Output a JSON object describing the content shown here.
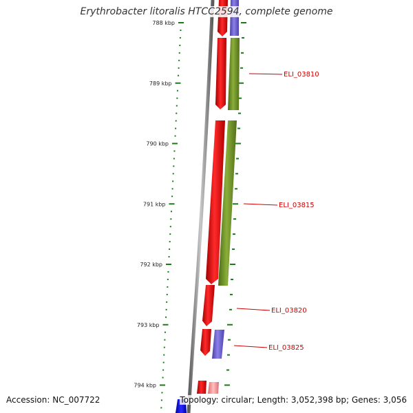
{
  "title": "Erythrobacter litoralis HTCC2594, complete genome",
  "accession": "Accession: NC_007722",
  "summary": "Topology: circular; Length: 3,052,398 bp; Genes: 3,056",
  "colors": {
    "forward_gene": "#ff0000",
    "reverse_gene_olive": "#6b8e23",
    "reverse_gene_purple": "#6a5acd",
    "blue_gene": "#0000cc",
    "backbone": "#888888",
    "ruler_ticks": "#1a7a1a",
    "label_line": "#cc0000"
  },
  "ruler": {
    "unit": "kbp",
    "major_ticks": [
      {
        "kbp": 788,
        "label": "788 kbp"
      },
      {
        "kbp": 789,
        "label": "789 kbp"
      },
      {
        "kbp": 790,
        "label": "790 kbp"
      },
      {
        "kbp": 791,
        "label": "791 kbp"
      },
      {
        "kbp": 792,
        "label": "792 kbp"
      },
      {
        "kbp": 793,
        "label": "793 kbp"
      },
      {
        "kbp": 794,
        "label": "794 kbp"
      }
    ]
  },
  "gene_labels": [
    {
      "label": "ELI_03810"
    },
    {
      "label": "ELI_03815"
    },
    {
      "label": "ELI_03820"
    },
    {
      "label": "ELI_03825"
    }
  ]
}
